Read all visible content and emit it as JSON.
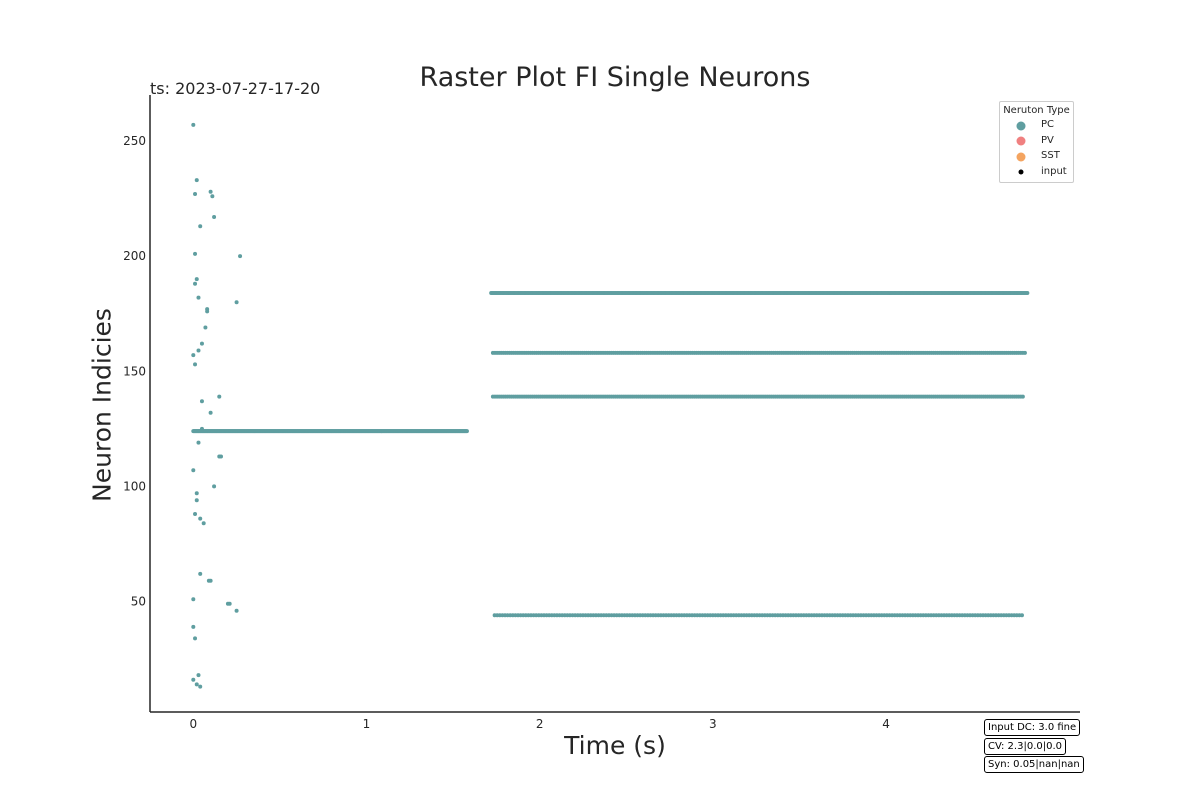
{
  "figure": {
    "timestamp": "ts: 2023-07-27-17-20",
    "info_boxes": [
      "Input DC: 3.0 fine",
      "CV: 2.3|0.0|0.0",
      "Syn: 0.05|nan|nan"
    ]
  },
  "legend": {
    "title": "Neruton Type",
    "items": [
      {
        "label": "PC",
        "color": "#5f9ea0"
      },
      {
        "label": "PV",
        "color": "#f08080"
      },
      {
        "label": "SST",
        "color": "#f4a460"
      },
      {
        "label": "input",
        "color": "#000000"
      }
    ]
  },
  "chart_data": {
    "type": "scatter",
    "title": "Raster Plot FI Single Neurons",
    "xlabel": "Time (s)",
    "ylabel": "Neuron Indicies",
    "xlim": [
      -0.25,
      5.12
    ],
    "ylim": [
      2,
      270
    ],
    "xticks": [
      0,
      1,
      2,
      3,
      4
    ],
    "yticks": [
      50,
      100,
      150,
      200,
      250
    ],
    "grid": false,
    "legend_position": "top-right",
    "point_color": "#5f9ea0",
    "series": [
      {
        "name": "PC",
        "color": "#5f9ea0",
        "points": [
          [
            0.0,
            257
          ],
          [
            0.02,
            233
          ],
          [
            0.01,
            227
          ],
          [
            0.1,
            228
          ],
          [
            0.11,
            226
          ],
          [
            0.12,
            217
          ],
          [
            0.04,
            213
          ],
          [
            0.01,
            201
          ],
          [
            0.27,
            200
          ],
          [
            0.02,
            190
          ],
          [
            0.01,
            188
          ],
          [
            0.03,
            182
          ],
          [
            0.25,
            180
          ],
          [
            0.08,
            177
          ],
          [
            0.08,
            176
          ],
          [
            0.07,
            169
          ],
          [
            0.05,
            162
          ],
          [
            0.03,
            159
          ],
          [
            0.0,
            157
          ],
          [
            0.01,
            153
          ],
          [
            0.15,
            139
          ],
          [
            0.05,
            137
          ],
          [
            0.1,
            132
          ],
          [
            0.05,
            125
          ],
          [
            0.03,
            119
          ],
          [
            0.15,
            113
          ],
          [
            0.16,
            113
          ],
          [
            0.0,
            107
          ],
          [
            0.12,
            100
          ],
          [
            0.02,
            97
          ],
          [
            0.02,
            94
          ],
          [
            0.01,
            88
          ],
          [
            0.04,
            86
          ],
          [
            0.06,
            84
          ],
          [
            0.04,
            62
          ],
          [
            0.09,
            59
          ],
          [
            0.1,
            59
          ],
          [
            0.0,
            51
          ],
          [
            0.2,
            49
          ],
          [
            0.21,
            49
          ],
          [
            0.25,
            46
          ],
          [
            0.0,
            39
          ],
          [
            0.01,
            34
          ],
          [
            0.03,
            18
          ],
          [
            0.0,
            16
          ],
          [
            0.02,
            14
          ],
          [
            0.04,
            13
          ]
        ],
        "trains": [
          {
            "neuron": 124,
            "t_start": 0.0,
            "t_end": 1.58,
            "interval": 0.004
          },
          {
            "neuron": 184,
            "t_start": 1.72,
            "t_end": 4.82,
            "interval": 0.008
          },
          {
            "neuron": 158,
            "t_start": 1.73,
            "t_end": 4.81,
            "interval": 0.012
          },
          {
            "neuron": 139,
            "t_start": 1.73,
            "t_end": 4.8,
            "interval": 0.012
          },
          {
            "neuron": 44,
            "t_start": 1.74,
            "t_end": 4.79,
            "interval": 0.015
          }
        ]
      },
      {
        "name": "PV",
        "color": "#f08080",
        "points": []
      },
      {
        "name": "SST",
        "color": "#f4a460",
        "points": []
      },
      {
        "name": "input",
        "color": "#000000",
        "points": []
      }
    ]
  }
}
